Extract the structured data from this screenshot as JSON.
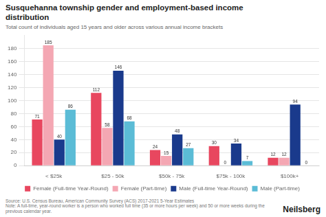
{
  "chart_data": {
    "type": "bar",
    "title": "Susquehanna township gender and employment-based income\ndistribution",
    "subtitle": "Total count of individuals aged 15 years and older across various annual income brackets",
    "categories": [
      "< $25k",
      "$25 - 50k",
      "$50k - 75k",
      "$75k - 100k",
      "$100k+"
    ],
    "series": [
      {
        "name": "Female (Full-time Year-Round)",
        "color": "#e8475f",
        "values": [
          71,
          112,
          24,
          30,
          12
        ]
      },
      {
        "name": "Female (Part-time)",
        "color": "#f4a7b3",
        "values": [
          185,
          58,
          15,
          0,
          12
        ]
      },
      {
        "name": "Male (Full-time Year-Round)",
        "color": "#1a3a8c",
        "values": [
          40,
          146,
          48,
          34,
          94
        ]
      },
      {
        "name": "Male (Part-time)",
        "color": "#5bbcd6",
        "values": [
          86,
          68,
          27,
          7,
          0
        ]
      }
    ],
    "ylim": [
      0,
      200
    ],
    "yticks": [
      0,
      20,
      40,
      60,
      80,
      100,
      120,
      140,
      160,
      180
    ],
    "grid": true,
    "legend": "bottom",
    "data_labels": true,
    "annotations": [
      "Source: U.S. Census Bureau, American Community Survey (ACS) 2017-2021 5-Year Estimates",
      "Note: A full-time, year-round worker is a person who worked full time (35 or more hours per week) and 50 or more weeks during the previous calendar year.",
      "Neilsberg"
    ]
  }
}
